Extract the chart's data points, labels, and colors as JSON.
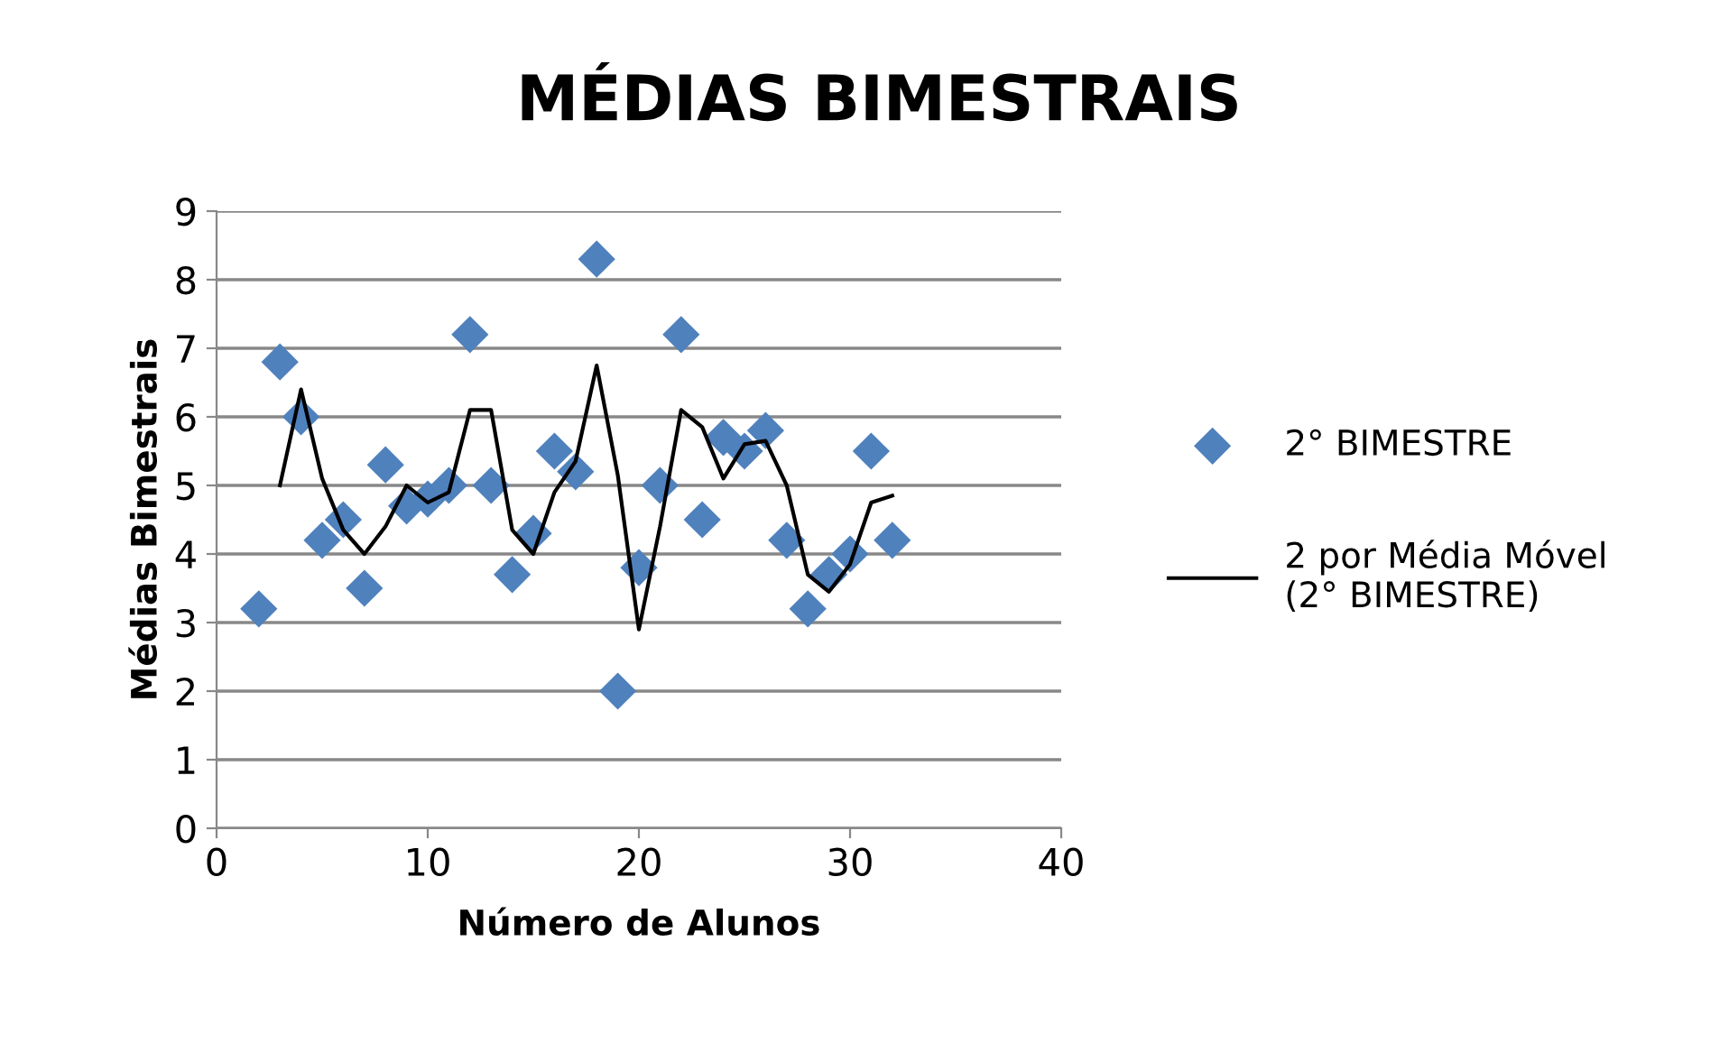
{
  "chart_data": {
    "type": "scatter",
    "title": "MÉDIAS BIMESTRAIS",
    "xlabel": "Número de Alunos",
    "ylabel": "Médias Bimestrais",
    "xlim": [
      0,
      40
    ],
    "xticks": [
      0,
      10,
      20,
      30,
      40
    ],
    "ylim": [
      0,
      9
    ],
    "yticks": [
      0,
      1,
      2,
      3,
      4,
      5,
      6,
      7,
      8,
      9
    ],
    "grid": "y",
    "legend": "right",
    "series": [
      {
        "name": "2° BIMESTRE",
        "marker": "diamond",
        "color": "#4f81bd",
        "x": [
          2,
          3,
          4,
          5,
          6,
          7,
          8,
          9,
          10,
          11,
          12,
          13,
          14,
          15,
          16,
          17,
          18,
          19,
          20,
          21,
          22,
          23,
          24,
          25,
          26,
          27,
          28,
          29,
          30,
          31,
          32
        ],
        "values": [
          3.2,
          6.8,
          6.0,
          4.2,
          4.5,
          3.5,
          5.3,
          4.7,
          4.8,
          5.0,
          7.2,
          5.0,
          3.7,
          4.3,
          5.5,
          5.2,
          8.3,
          2.0,
          3.8,
          5.0,
          7.2,
          4.5,
          5.7,
          5.5,
          5.8,
          4.2,
          3.2,
          3.7,
          4.0,
          5.5,
          4.2
        ]
      },
      {
        "name": "2 por Média Móvel (2° BIMESTRE)",
        "type": "line",
        "marker": "none",
        "color": "#000000",
        "x": [
          3,
          4,
          5,
          6,
          7,
          8,
          9,
          10,
          11,
          12,
          13,
          14,
          15,
          16,
          17,
          18,
          19,
          20,
          21,
          22,
          23,
          24,
          25,
          26,
          27,
          28,
          29,
          30,
          31,
          32
        ],
        "values": [
          5.0,
          6.4,
          5.1,
          4.35,
          4.0,
          4.4,
          5.0,
          4.75,
          4.9,
          6.1,
          6.1,
          4.35,
          4.0,
          4.9,
          5.35,
          6.75,
          5.15,
          2.9,
          4.4,
          6.1,
          5.85,
          5.1,
          5.6,
          5.65,
          5.0,
          3.7,
          3.45,
          3.85,
          4.75,
          4.85
        ]
      }
    ]
  }
}
